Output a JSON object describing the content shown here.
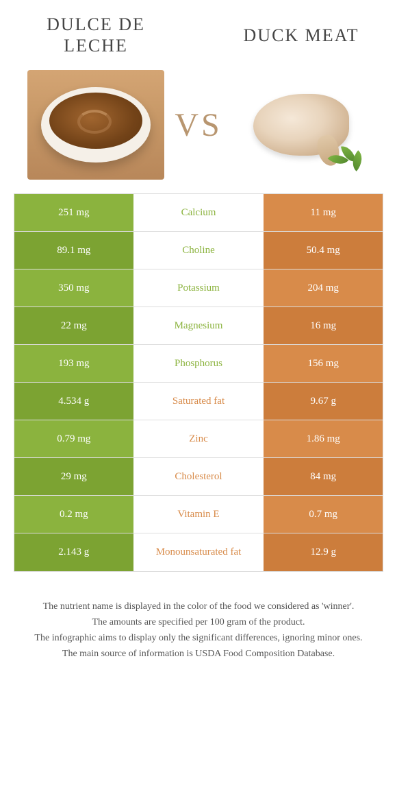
{
  "colors": {
    "left": "#8bb33e",
    "right": "#d88b4a",
    "left_dark": "#7ca332",
    "right_dark": "#cc7d3c"
  },
  "header": {
    "left_title": "DULCE DE LECHE",
    "right_title": "DUCK MEAT",
    "vs": "VS"
  },
  "rows": [
    {
      "left": "251 mg",
      "label": "Calcium",
      "right": "11 mg",
      "winner": "left"
    },
    {
      "left": "89.1 mg",
      "label": "Choline",
      "right": "50.4 mg",
      "winner": "left"
    },
    {
      "left": "350 mg",
      "label": "Potassium",
      "right": "204 mg",
      "winner": "left"
    },
    {
      "left": "22 mg",
      "label": "Magnesium",
      "right": "16 mg",
      "winner": "left"
    },
    {
      "left": "193 mg",
      "label": "Phosphorus",
      "right": "156 mg",
      "winner": "left"
    },
    {
      "left": "4.534 g",
      "label": "Saturated fat",
      "right": "9.67 g",
      "winner": "right"
    },
    {
      "left": "0.79 mg",
      "label": "Zinc",
      "right": "1.86 mg",
      "winner": "right"
    },
    {
      "left": "29 mg",
      "label": "Cholesterol",
      "right": "84 mg",
      "winner": "right"
    },
    {
      "left": "0.2 mg",
      "label": "Vitamin E",
      "right": "0.7 mg",
      "winner": "right"
    },
    {
      "left": "2.143 g",
      "label": "Monounsaturated fat",
      "right": "12.9 g",
      "winner": "right"
    }
  ],
  "footer": {
    "line1": "The nutrient name is displayed in the color of the food we considered as 'winner'.",
    "line2": "The amounts are specified per 100 gram of the product.",
    "line3": "The infographic aims to display only the significant differences, ignoring minor ones.",
    "line4": "The main source of information is USDA Food Composition Database."
  }
}
